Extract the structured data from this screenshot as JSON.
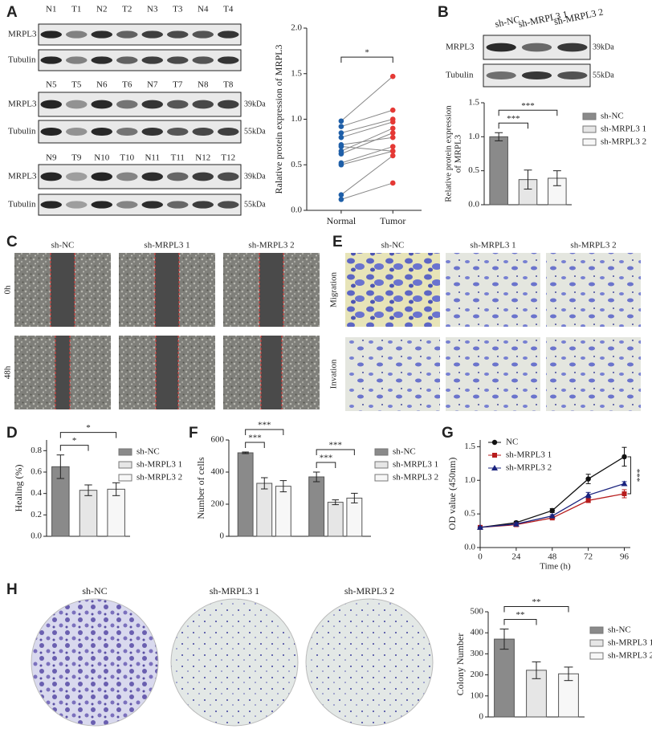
{
  "panels": {
    "labels": [
      "A",
      "B",
      "C",
      "D",
      "E",
      "F",
      "G",
      "H"
    ]
  },
  "blot_a": {
    "rows": [
      {
        "lanes": [
          "N1",
          "T1",
          "N2",
          "T2",
          "N3",
          "T3",
          "N4",
          "T4"
        ],
        "proteins": [
          "MRPL3",
          "Tubulin"
        ]
      },
      {
        "lanes": [
          "N5",
          "T5",
          "N6",
          "T6",
          "N7",
          "T7",
          "N8",
          "T8"
        ],
        "proteins": [
          "MRPL3",
          "Tubulin"
        ],
        "sizes": [
          "39kDa",
          "55kDa"
        ]
      },
      {
        "lanes": [
          "N9",
          "T9",
          "N10",
          "T10",
          "N11",
          "T11",
          "N12",
          "T12"
        ],
        "proteins": [
          "MRPL3",
          "Tubulin"
        ],
        "sizes": [
          "39kDa",
          "55kDa"
        ]
      }
    ]
  },
  "blot_b": {
    "lanes": [
      "sh-NC",
      "sh-MRPL3 1",
      "sh-MRPL3 2"
    ],
    "proteins": [
      "MRPL3",
      "Tubulin"
    ],
    "sizes": [
      "39kDa",
      "55kDa"
    ]
  },
  "wound": {
    "columns": [
      "sh-NC",
      "sh-MRPL3 1",
      "sh-MRPL3 2"
    ],
    "rows": [
      "0h",
      "48h"
    ]
  },
  "transwell": {
    "columns": [
      "sh-NC",
      "sh-MRPL3 1",
      "sh-MRPL3 2"
    ],
    "rows": [
      "Migration",
      "Invation"
    ]
  },
  "colony": {
    "columns": [
      "sh-NC",
      "sh-MRPL3 1",
      "sh-MRPL3 2"
    ]
  },
  "chart_data": [
    {
      "type": "paired",
      "ylabel": "Ralative protein expression of MRPL3",
      "categories": [
        "Normal",
        "Tumor"
      ],
      "colors": [
        "#1f5fa8",
        "#e53935"
      ],
      "values": [
        [
          0.12,
          0.17,
          0.5,
          0.52,
          0.62,
          0.65,
          0.7,
          0.72,
          0.8,
          0.85,
          0.92,
          0.98
        ],
        [
          0.3,
          0.6,
          0.65,
          0.7,
          0.85,
          0.9,
          0.65,
          0.8,
          0.97,
          1.0,
          1.1,
          1.47
        ]
      ],
      "ylim": [
        0,
        2.0
      ],
      "yticks": [
        {
          "value": 0,
          "label": "0.0"
        },
        0.5,
        {
          "value": 1,
          "label": "1.0"
        },
        1.5,
        {
          "value": 2,
          "label": "2.0"
        }
      ],
      "significance": [
        "*"
      ]
    },
    {
      "type": "bar",
      "ylabel": [
        "Relative protein expression",
        "of MRPL3"
      ],
      "categories": [
        "sh-NC",
        "sh-MRPL3 1",
        "sh-MRPL3 2"
      ],
      "colors": [
        "#8a8a8a",
        "#e6e6e6",
        "#f7f7f7"
      ],
      "values": [
        1.0,
        0.37,
        0.39
      ],
      "errors": [
        0.06,
        0.14,
        0.11
      ],
      "ylim": [
        0,
        1.5
      ],
      "yticks": [
        {
          "value": 0,
          "label": "0.0"
        },
        0.5,
        {
          "value": 1,
          "label": "1.0"
        },
        1.5
      ],
      "significance": [
        "***",
        "***"
      ]
    },
    {
      "type": "bar",
      "ylabel": "Healing (%)",
      "categories": [
        "sh-NC",
        "sh-MRPL3 1",
        "sh-MRPL3 2"
      ],
      "colors": [
        "#8a8a8a",
        "#e6e6e6",
        "#f7f7f7"
      ],
      "values": [
        0.65,
        0.43,
        0.44
      ],
      "errors": [
        0.11,
        0.05,
        0.06
      ],
      "ylim": [
        0,
        0.9
      ],
      "yticks": [
        {
          "value": 0,
          "label": "0.0"
        },
        0.2,
        0.4,
        0.6,
        0.8
      ],
      "significance": [
        "*",
        "*"
      ]
    },
    {
      "type": "grouped_bar",
      "ylabel": "Number of cells",
      "series": [
        {
          "name": "sh-NC",
          "color": "#8a8a8a",
          "values": [
            520,
            370
          ],
          "errors": [
            5,
            30
          ]
        },
        {
          "name": "sh-MRPL3 1",
          "color": "#e6e6e6",
          "values": [
            330,
            212
          ],
          "errors": [
            35,
            15
          ]
        },
        {
          "name": "sh-MRPL3 2",
          "color": "#f7f7f7",
          "values": [
            312,
            238
          ],
          "errors": [
            35,
            30
          ]
        }
      ],
      "ylim": [
        0,
        600
      ],
      "yticks": [
        0,
        200,
        400,
        600
      ],
      "significance": [
        "***",
        "***",
        "***",
        "***"
      ]
    },
    {
      "type": "line",
      "ylabel": "OD value (450nm)",
      "xlabel": "Time (h)",
      "x": [
        0,
        24,
        48,
        72,
        96
      ],
      "series": [
        {
          "name": "NC",
          "color": "#111111",
          "marker": "circle",
          "values": [
            0.3,
            0.37,
            0.55,
            1.02,
            1.35
          ],
          "errors": [
            0.02,
            0.02,
            0.03,
            0.07,
            0.14
          ]
        },
        {
          "name": "sh-MRPL3 1",
          "color": "#b71c1c",
          "marker": "square",
          "values": [
            0.3,
            0.34,
            0.44,
            0.7,
            0.8
          ],
          "errors": [
            0.01,
            0.02,
            0.02,
            0.03,
            0.06
          ]
        },
        {
          "name": "sh-MRPL3 2",
          "color": "#1a237e",
          "marker": "triangle",
          "values": [
            0.3,
            0.35,
            0.47,
            0.78,
            0.95
          ],
          "errors": [
            0.01,
            0.02,
            0.02,
            0.04,
            0.03
          ]
        }
      ],
      "xlim": [
        0,
        100
      ],
      "xticks": [
        0,
        24,
        48,
        72,
        96
      ],
      "ylim": [
        0,
        1.6
      ],
      "yticks": [
        {
          "value": 0,
          "label": "0.0"
        },
        0.5,
        {
          "value": 1,
          "label": "1.0"
        },
        1.5
      ],
      "significance": [
        "***"
      ]
    },
    {
      "type": "bar",
      "ylabel": "Colony Number",
      "categories": [
        "sh-NC",
        "sh-MRPL3 1",
        "sh-MRPL3 2"
      ],
      "colors": [
        "#8a8a8a",
        "#e6e6e6",
        "#f7f7f7"
      ],
      "values": [
        370,
        222,
        205
      ],
      "errors": [
        48,
        40,
        32
      ],
      "ylim": [
        0,
        500
      ],
      "yticks": [
        0,
        100,
        200,
        300,
        400,
        500
      ],
      "significance": [
        "**",
        "**"
      ]
    }
  ]
}
